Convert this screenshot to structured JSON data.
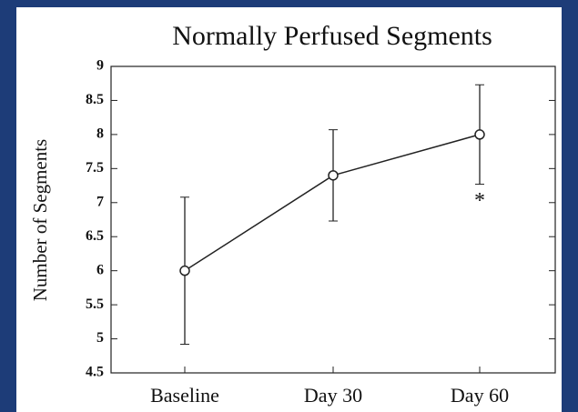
{
  "chart_data": {
    "type": "line",
    "title": "Normally Perfused Segments",
    "y_label": "Number of Segments",
    "categories": [
      "Baseline",
      "Day 30",
      "Day 60"
    ],
    "series": [
      {
        "name": "Normally Perfused Segments",
        "color": "#222222",
        "values": [
          6,
          7.4,
          8
        ],
        "errors": [
          1.08,
          0.67,
          0.73
        ]
      }
    ],
    "ylim": [
      4.5,
      9
    ],
    "yticks": [
      4.5,
      5,
      5.5,
      6,
      6.5,
      7,
      7.5,
      8,
      8.5,
      9
    ],
    "annotations": [
      {
        "text": "*",
        "category": 2
      }
    ]
  }
}
